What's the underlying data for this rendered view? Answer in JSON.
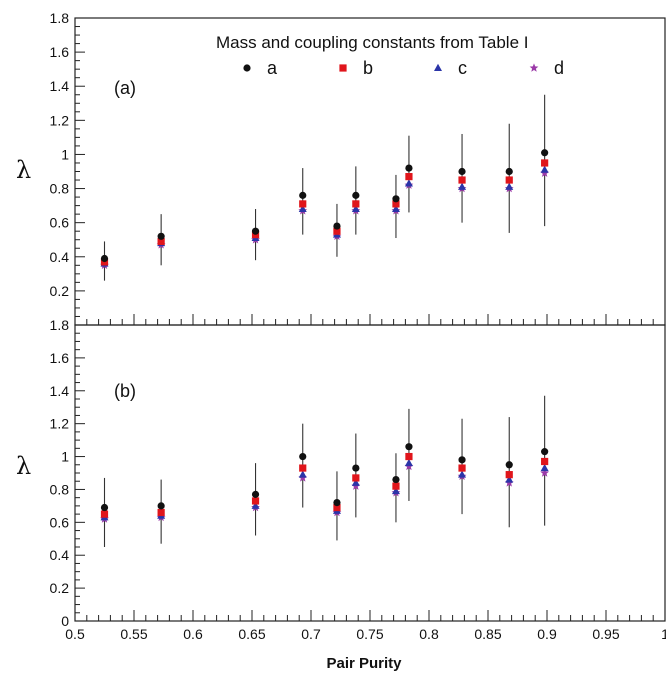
{
  "chart_data": {
    "type": "scatter",
    "xlabel": "Pair Purity",
    "x_ticks": [
      "0.5",
      "0.55",
      "0.6",
      "0.65",
      "0.7",
      "0.75",
      "0.8",
      "0.85",
      "0.9",
      "0.95",
      "1"
    ],
    "xlim": [
      0.5,
      1.0
    ],
    "legend_title": "Mass and coupling constants from Table I",
    "legend_placement": "top-right",
    "grid": false,
    "series_styles": [
      {
        "name": "a",
        "marker": "circle",
        "color": "#111111"
      },
      {
        "name": "b",
        "marker": "square",
        "color": "#e0151b"
      },
      {
        "name": "c",
        "marker": "triangle",
        "color": "#2b35a8"
      },
      {
        "name": "d",
        "marker": "star",
        "color": "#9b3aa8"
      }
    ],
    "panels": [
      {
        "panel_label": "(a)",
        "ylabel": "λ",
        "ylim": [
          0,
          1.8
        ],
        "y_ticks": [
          "0.2",
          "0.4",
          "0.6",
          "0.8",
          "1",
          "1.2",
          "1.4",
          "1.6",
          "1.8"
        ],
        "x": [
          0.525,
          0.573,
          0.653,
          0.693,
          0.722,
          0.738,
          0.772,
          0.783,
          0.828,
          0.868,
          0.898
        ],
        "series": [
          {
            "name": "a",
            "values": [
              0.39,
              0.52,
              0.55,
              0.76,
              0.58,
              0.76,
              0.74,
              0.92,
              0.9,
              0.9,
              1.01
            ],
            "error_low": [
              0.26,
              0.35,
              0.38,
              0.53,
              0.4,
              0.53,
              0.51,
              0.66,
              0.6,
              0.54,
              0.58
            ],
            "error_high": [
              0.49,
              0.65,
              0.68,
              0.92,
              0.71,
              0.93,
              0.88,
              1.11,
              1.12,
              1.18,
              1.35
            ]
          },
          {
            "name": "b",
            "values": [
              0.37,
              0.49,
              0.53,
              0.71,
              0.55,
              0.71,
              0.71,
              0.87,
              0.85,
              0.85,
              0.95
            ]
          },
          {
            "name": "c",
            "values": [
              0.36,
              0.48,
              0.51,
              0.68,
              0.53,
              0.68,
              0.68,
              0.83,
              0.81,
              0.81,
              0.91
            ]
          },
          {
            "name": "d",
            "values": [
              0.35,
              0.47,
              0.5,
              0.67,
              0.52,
              0.67,
              0.67,
              0.82,
              0.8,
              0.8,
              0.89
            ]
          }
        ]
      },
      {
        "panel_label": "(b)",
        "ylabel": "λ",
        "ylim": [
          0,
          1.8
        ],
        "y_ticks": [
          "0",
          "0.2",
          "0.4",
          "0.6",
          "0.8",
          "1",
          "1.2",
          "1.4",
          "1.6",
          "1.8"
        ],
        "x": [
          0.525,
          0.573,
          0.653,
          0.693,
          0.722,
          0.738,
          0.772,
          0.783,
          0.828,
          0.868,
          0.898
        ],
        "series": [
          {
            "name": "a",
            "values": [
              0.69,
              0.7,
              0.77,
              1.0,
              0.72,
              0.93,
              0.86,
              1.06,
              0.98,
              0.95,
              1.03
            ],
            "error_low": [
              0.45,
              0.47,
              0.52,
              0.69,
              0.49,
              0.63,
              0.6,
              0.73,
              0.65,
              0.57,
              0.58
            ],
            "error_high": [
              0.87,
              0.86,
              0.96,
              1.2,
              0.91,
              1.14,
              1.02,
              1.29,
              1.23,
              1.24,
              1.37
            ]
          },
          {
            "name": "b",
            "values": [
              0.65,
              0.66,
              0.73,
              0.93,
              0.69,
              0.87,
              0.82,
              1.0,
              0.93,
              0.89,
              0.97
            ]
          },
          {
            "name": "c",
            "values": [
              0.63,
              0.64,
              0.7,
              0.89,
              0.67,
              0.84,
              0.79,
              0.96,
              0.89,
              0.86,
              0.93
            ]
          },
          {
            "name": "d",
            "values": [
              0.62,
              0.63,
              0.69,
              0.87,
              0.66,
              0.82,
              0.78,
              0.94,
              0.88,
              0.84,
              0.9
            ]
          }
        ]
      }
    ]
  }
}
